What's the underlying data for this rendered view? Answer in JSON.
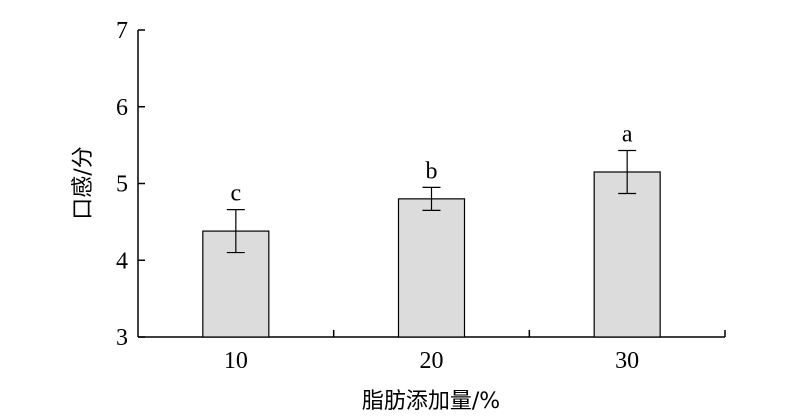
{
  "chart_data": {
    "type": "bar",
    "categories": [
      "10",
      "20",
      "30"
    ],
    "values": [
      4.38,
      4.8,
      5.15
    ],
    "errors": [
      0.28,
      0.15,
      0.28
    ],
    "significance_labels": [
      "c",
      "b",
      "a"
    ],
    "xlabel": "脂肪添加量/%",
    "ylabel": "口感/分",
    "ylim": [
      3,
      7
    ],
    "yticks": [
      "3",
      "4",
      "5",
      "6",
      "7"
    ],
    "bar_color": "#dcdcdc",
    "grid": false
  }
}
